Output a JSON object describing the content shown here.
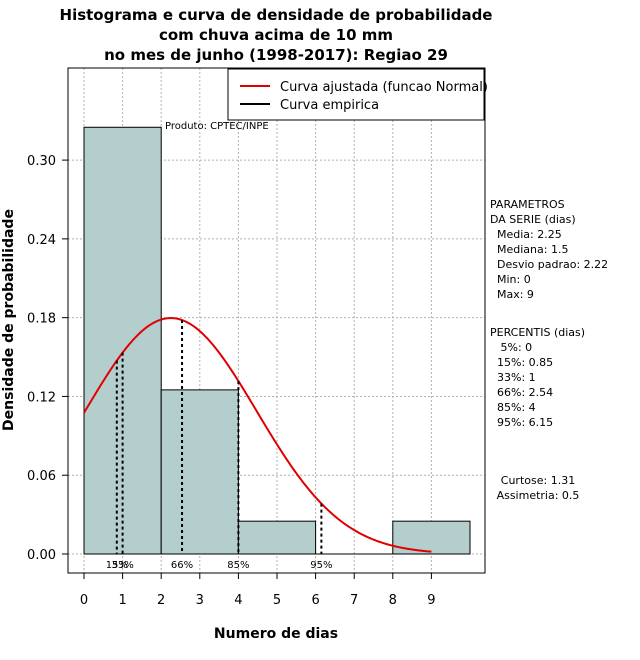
{
  "chart_data": {
    "type": "histogram",
    "title_lines": [
      "Histograma e curva de densidade de probabilidade",
      "com chuva acima de 10 mm",
      "no mes de junho (1998-2017): Regiao 29"
    ],
    "xlabel": "Numero de dias",
    "ylabel": "Densidade de probabilidade",
    "xlim": [
      0,
      10
    ],
    "ylim": [
      0,
      0.36
    ],
    "x_ticks": [
      0,
      1,
      2,
      3,
      4,
      5,
      6,
      7,
      8,
      9
    ],
    "y_ticks": [
      0.0,
      0.06,
      0.12,
      0.18,
      0.24,
      0.3
    ],
    "y_tick_labels": [
      "0.00",
      "0.06",
      "0.12",
      "0.18",
      "0.24",
      "0.30"
    ],
    "bins": [
      {
        "start": 0,
        "end": 2,
        "density": 0.325
      },
      {
        "start": 2,
        "end": 4,
        "density": 0.125
      },
      {
        "start": 4,
        "end": 6,
        "density": 0.025
      },
      {
        "start": 6,
        "end": 8,
        "density": 0.0
      },
      {
        "start": 8,
        "end": 10,
        "density": 0.025
      }
    ],
    "normal_fit": {
      "mean": 2.25,
      "sd": 2.22,
      "x_from": 0,
      "x_to": 9
    },
    "percentile_lines": [
      {
        "label": "15%",
        "x": 0.85
      },
      {
        "label": "33%",
        "x": 1
      },
      {
        "label": "66%",
        "x": 2.54
      },
      {
        "label": "85%",
        "x": 4
      },
      {
        "label": "95%",
        "x": 6.15
      }
    ],
    "legend": [
      {
        "label": "Curva ajustada (funcao Normal)",
        "color": "#e00000"
      },
      {
        "label": "Curva empirica",
        "color": "#000000"
      }
    ],
    "annotation": "Produto: CPTEC/INPE",
    "colors": {
      "bar_fill": "#b4cdcd",
      "curve": "#e00000",
      "grid": "#b0b0b0"
    }
  },
  "side_panel": {
    "parametros_lines": [
      "PARAMETROS",
      "DA SERIE (dias)",
      "  Media: 2.25",
      "  Mediana: 1.5",
      "  Desvio padrao: 2.22",
      "  Min: 0",
      "  Max: 9"
    ],
    "percentis_lines": [
      "PERCENTIS (dias)",
      "   5%: 0",
      "  15%: 0.85",
      "  33%: 1",
      "  66%: 2.54",
      "  85%: 4",
      "  95%: 6.15"
    ],
    "shape_lines": [
      "Curtose: 1.31",
      "Assimetria: 0.5"
    ]
  }
}
